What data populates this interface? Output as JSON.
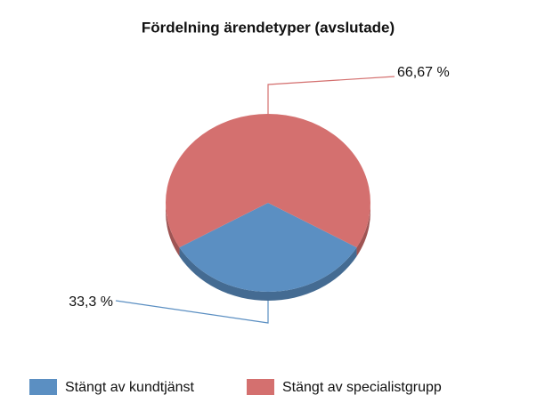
{
  "chart_data": {
    "type": "pie",
    "title": "Fördelning ärendetyper (avslutade)",
    "categories": [
      "Stängt av kundtjänst",
      "Stängt av specialistgrupp"
    ],
    "values": [
      33.3,
      66.67
    ],
    "value_labels": [
      "33,3 %",
      "66,67 %"
    ],
    "colors": [
      "#5b8fc2",
      "#d4706f"
    ],
    "legend": "bottom"
  }
}
